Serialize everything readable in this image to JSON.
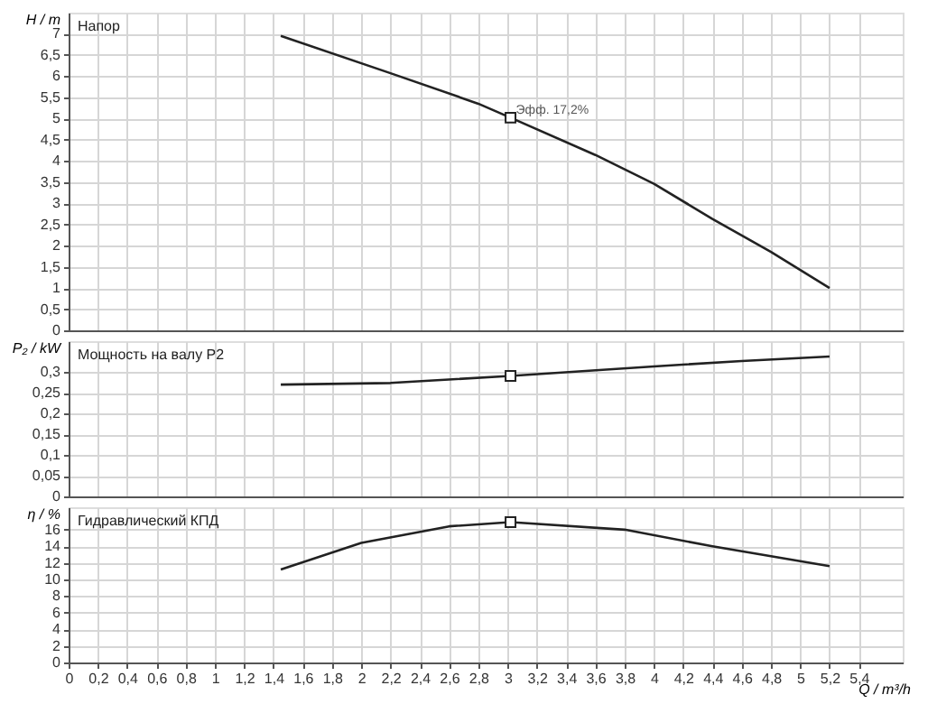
{
  "chart_data": [
    {
      "type": "line",
      "title": "Напор",
      "ylabel": "H / m",
      "xlim": [
        0,
        5.7
      ],
      "ylim": [
        0,
        7.5
      ],
      "yticks": [
        0,
        {
          "value": 0.5,
          "label": "0,5"
        },
        1,
        {
          "value": 1.5,
          "label": "1,5"
        },
        2,
        {
          "value": 2.5,
          "label": "2,5"
        },
        3,
        {
          "value": 3.5,
          "label": "3,5"
        },
        4,
        {
          "value": 4.5,
          "label": "4,5"
        },
        5,
        {
          "value": 5.5,
          "label": "5,5"
        },
        6,
        {
          "value": 6.5,
          "label": "6,5"
        },
        7
      ],
      "xticks": [
        0,
        0.2,
        0.4,
        0.6,
        0.8,
        1,
        1.2,
        1.4,
        1.6,
        1.8,
        2,
        2.2,
        2.4,
        2.6,
        2.8,
        3,
        3.2,
        3.4,
        3.6,
        3.8,
        4,
        4.2,
        4.4,
        4.6,
        4.8,
        5,
        5.2,
        5.4
      ],
      "tick_labels": "y",
      "grid": true,
      "marker": "none",
      "line_style": "solid",
      "series": [
        {
          "color": "#222222",
          "x": [
            1.45,
            2.2,
            2.8,
            3.02,
            3.6,
            4.0,
            4.4,
            4.8,
            5.2
          ],
          "values": [
            6.95,
            6.07,
            5.35,
            5.02,
            4.14,
            3.46,
            2.63,
            1.85,
            1.0
          ]
        },
        {
          "type": "scatter",
          "marker": "square",
          "color": "#222222",
          "x": [
            3.02
          ],
          "values": [
            5.02
          ]
        }
      ],
      "annotations": [
        {
          "text": "Эфф. 17,2%",
          "x": 3.02,
          "y": 5.02
        }
      ]
    },
    {
      "type": "line",
      "title": "Мощность на валу P2",
      "ylabel": "P₂ / kW",
      "xlim": [
        0,
        5.7
      ],
      "ylim": [
        0,
        0.375
      ],
      "yticks": [
        0,
        {
          "value": 0.05,
          "label": "0,05"
        },
        {
          "value": 0.1,
          "label": "0,1"
        },
        {
          "value": 0.15,
          "label": "0,15"
        },
        {
          "value": 0.2,
          "label": "0,2"
        },
        {
          "value": 0.25,
          "label": "0,25"
        },
        {
          "value": 0.3,
          "label": "0,3"
        }
      ],
      "xticks": [
        0,
        0.2,
        0.4,
        0.6,
        0.8,
        1,
        1.2,
        1.4,
        1.6,
        1.8,
        2,
        2.2,
        2.4,
        2.6,
        2.8,
        3,
        3.2,
        3.4,
        3.6,
        3.8,
        4,
        4.2,
        4.4,
        4.6,
        4.8,
        5,
        5.2,
        5.4
      ],
      "tick_labels": "y",
      "grid": true,
      "marker": "none",
      "line_style": "solid",
      "series": [
        {
          "color": "#222222",
          "x": [
            1.45,
            2.2,
            3.02,
            4.0,
            4.6,
            5.2
          ],
          "values": [
            0.27,
            0.274,
            0.291,
            0.314,
            0.327,
            0.338
          ]
        },
        {
          "type": "scatter",
          "marker": "square",
          "color": "#222222",
          "x": [
            3.02
          ],
          "values": [
            0.291
          ]
        }
      ]
    },
    {
      "type": "line",
      "title": "Гидравлический КПД",
      "ylabel": "η / %",
      "xlabel": "Q / m³/h",
      "xlim": [
        0,
        5.7
      ],
      "ylim": [
        0,
        18.7
      ],
      "yticks": [
        0,
        2,
        4,
        6,
        8,
        10,
        12,
        14,
        16
      ],
      "xticks": [
        0,
        {
          "value": 0.2,
          "label": "0,2"
        },
        {
          "value": 0.4,
          "label": "0,4"
        },
        {
          "value": 0.6,
          "label": "0,6"
        },
        {
          "value": 0.8,
          "label": "0,8"
        },
        1,
        {
          "value": 1.2,
          "label": "1,2"
        },
        {
          "value": 1.4,
          "label": "1,4"
        },
        {
          "value": 1.6,
          "label": "1,6"
        },
        {
          "value": 1.8,
          "label": "1,8"
        },
        2,
        {
          "value": 2.2,
          "label": "2,2"
        },
        {
          "value": 2.4,
          "label": "2,4"
        },
        {
          "value": 2.6,
          "label": "2,6"
        },
        {
          "value": 2.8,
          "label": "2,8"
        },
        3,
        {
          "value": 3.2,
          "label": "3,2"
        },
        {
          "value": 3.4,
          "label": "3,4"
        },
        {
          "value": 3.6,
          "label": "3,6"
        },
        {
          "value": 3.8,
          "label": "3,8"
        },
        4,
        {
          "value": 4.2,
          "label": "4,2"
        },
        {
          "value": 4.4,
          "label": "4,4"
        },
        {
          "value": 4.6,
          "label": "4,6"
        },
        {
          "value": 4.8,
          "label": "4,8"
        },
        5,
        {
          "value": 5.2,
          "label": "5,2"
        },
        {
          "value": 5.4,
          "label": "5,4"
        }
      ],
      "grid": true,
      "marker": "none",
      "line_style": "solid",
      "series": [
        {
          "color": "#222222",
          "x": [
            1.45,
            2.0,
            2.6,
            3.02,
            3.8,
            4.4,
            5.2
          ],
          "values": [
            11.2,
            14.4,
            16.4,
            16.9,
            16.0,
            14.0,
            11.6
          ]
        },
        {
          "type": "scatter",
          "marker": "square",
          "color": "#222222",
          "x": [
            3.02
          ],
          "values": [
            16.9
          ]
        }
      ]
    }
  ]
}
